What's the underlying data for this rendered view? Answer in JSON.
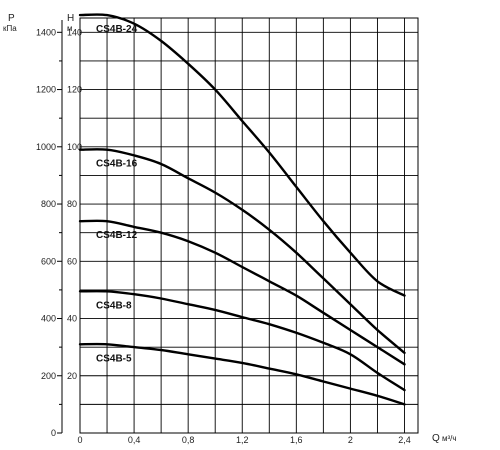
{
  "chart_data": {
    "type": "line",
    "x_axis": {
      "label": "Q",
      "unit": "м³/ч",
      "range": [
        0,
        2.5
      ],
      "ticks": [
        "0",
        "0,4",
        "0,8",
        "1,2",
        "1,6",
        "2",
        "2,4"
      ],
      "tick_values": [
        0,
        0.4,
        0.8,
        1.2,
        1.6,
        2.0,
        2.4
      ],
      "grid_step": 0.2
    },
    "y_axis_left": {
      "label": "P",
      "unit": "кПа",
      "range": [
        0,
        1450
      ],
      "ticks": [
        "0",
        "200",
        "400",
        "600",
        "800",
        "1000",
        "1200",
        "1400"
      ],
      "tick_values": [
        0,
        200,
        400,
        600,
        800,
        1000,
        1200,
        1400
      ]
    },
    "y_axis_inner": {
      "label": "H",
      "unit": "м",
      "range": [
        0,
        145
      ],
      "ticks": [
        "20",
        "40",
        "60",
        "80",
        "100",
        "120",
        "140"
      ],
      "tick_values": [
        20,
        40,
        60,
        80,
        100,
        120,
        140
      ],
      "grid_step": 10
    },
    "grid": true,
    "series": [
      {
        "name": "CS4B-24",
        "x": [
          0,
          0.2,
          0.4,
          0.6,
          0.8,
          1.0,
          1.2,
          1.4,
          1.6,
          1.8,
          2.0,
          2.2,
          2.4
        ],
        "y": [
          146,
          146,
          143,
          137,
          129,
          120,
          109,
          98,
          86,
          74,
          63,
          53,
          48
        ]
      },
      {
        "name": "CS4B-16",
        "x": [
          0,
          0.2,
          0.4,
          0.6,
          0.8,
          1.0,
          1.2,
          1.4,
          1.6,
          1.8,
          2.0,
          2.2,
          2.4
        ],
        "y": [
          99,
          99,
          97,
          94,
          89,
          84,
          78,
          71,
          63,
          54,
          45,
          36,
          28
        ]
      },
      {
        "name": "CS4B-12",
        "x": [
          0,
          0.2,
          0.4,
          0.6,
          0.8,
          1.0,
          1.2,
          1.4,
          1.6,
          1.8,
          2.0,
          2.2,
          2.4
        ],
        "y": [
          74,
          74,
          72,
          70,
          67,
          63,
          58,
          53,
          48,
          42,
          36,
          30,
          24
        ]
      },
      {
        "name": "CS4B-8",
        "x": [
          0,
          0.2,
          0.4,
          0.6,
          0.8,
          1.0,
          1.2,
          1.4,
          1.6,
          1.8,
          2.0,
          2.2,
          2.4
        ],
        "y": [
          49.5,
          49.5,
          48.5,
          47,
          45,
          43,
          40.5,
          38,
          35,
          31.5,
          27.5,
          21,
          15
        ]
      },
      {
        "name": "CS4B-5",
        "x": [
          0,
          0.2,
          0.4,
          0.6,
          0.8,
          1.0,
          1.2,
          1.4,
          1.6,
          1.8,
          2.0,
          2.2,
          2.4
        ],
        "y": [
          31,
          31,
          30,
          29,
          27.5,
          26,
          24.5,
          22.5,
          20.5,
          18,
          15.5,
          13,
          10
        ]
      }
    ]
  }
}
